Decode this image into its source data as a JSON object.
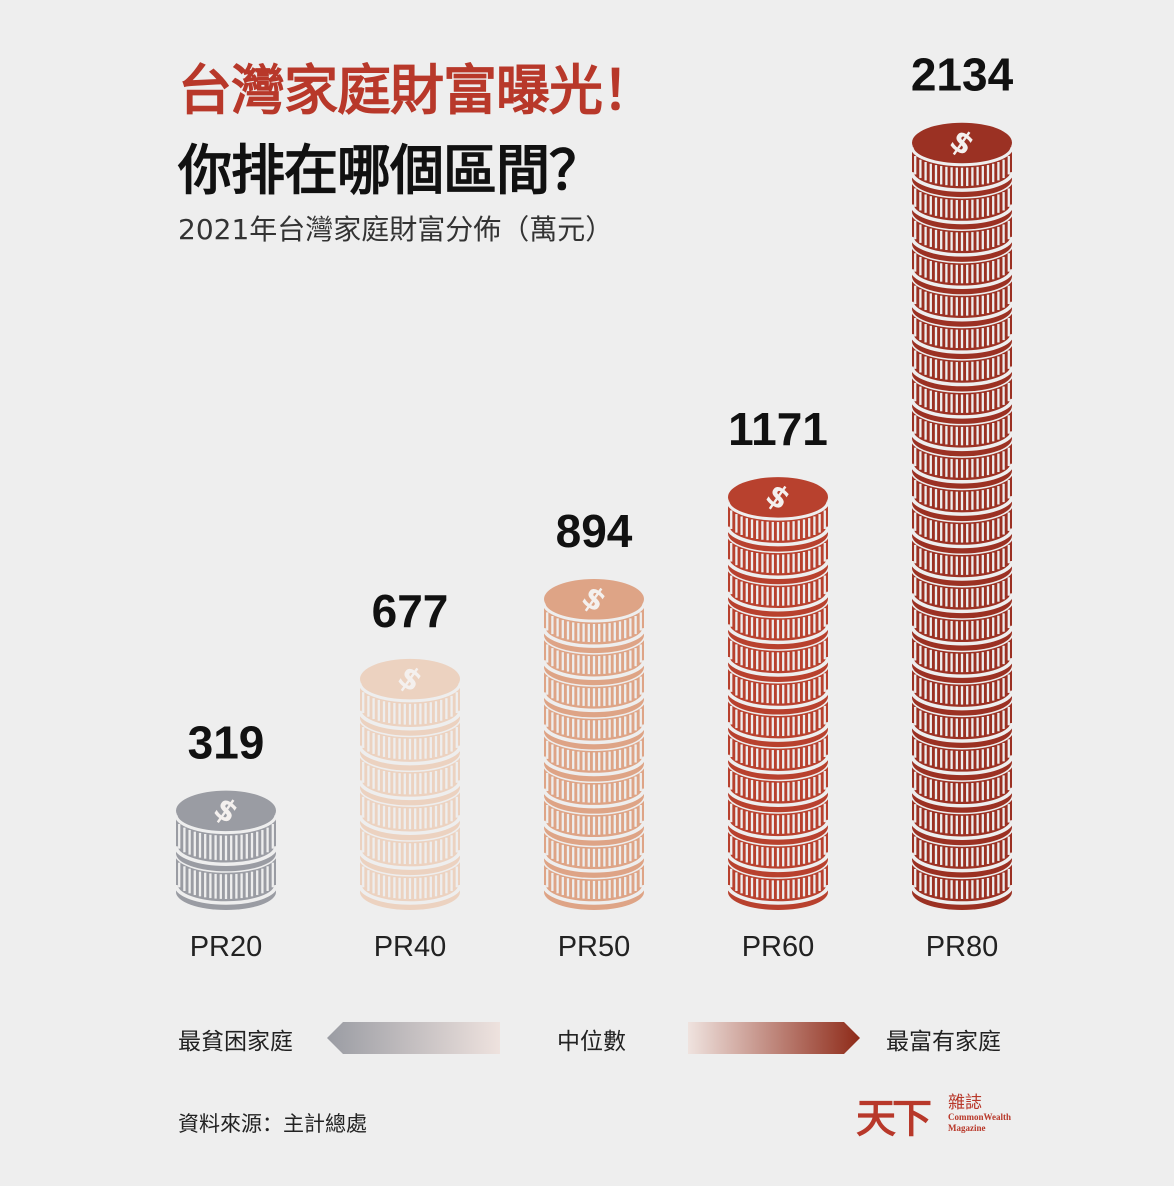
{
  "title_line1": "台灣家庭財富曝光！",
  "title_line2": "你排在哪個區間？",
  "subtitle": "2021年台灣家庭財富分佈（萬元）",
  "chart_data": {
    "type": "bar",
    "style": "coin stacks",
    "categories": [
      "PR20",
      "PR40",
      "PR50",
      "PR60",
      "PR80"
    ],
    "values": [
      319,
      677,
      894,
      1171,
      2134
    ],
    "unit": "萬元",
    "colors": [
      "#9a9ca3",
      "#ecd2c0",
      "#dea486",
      "#b8412e",
      "#9b3123"
    ],
    "data_labels": [
      "319",
      "677",
      "894",
      "1171",
      "2134"
    ]
  },
  "legend": {
    "left_label": "最貧困家庭",
    "center_label": "中位數",
    "right_label": "最富有家庭"
  },
  "source": "資料來源：主計總處",
  "logo": {
    "text_main": "天下",
    "text_side": "雜誌",
    "text_en1": "CommonWealth",
    "text_en2": "Magazine",
    "color": "#b8382a"
  }
}
